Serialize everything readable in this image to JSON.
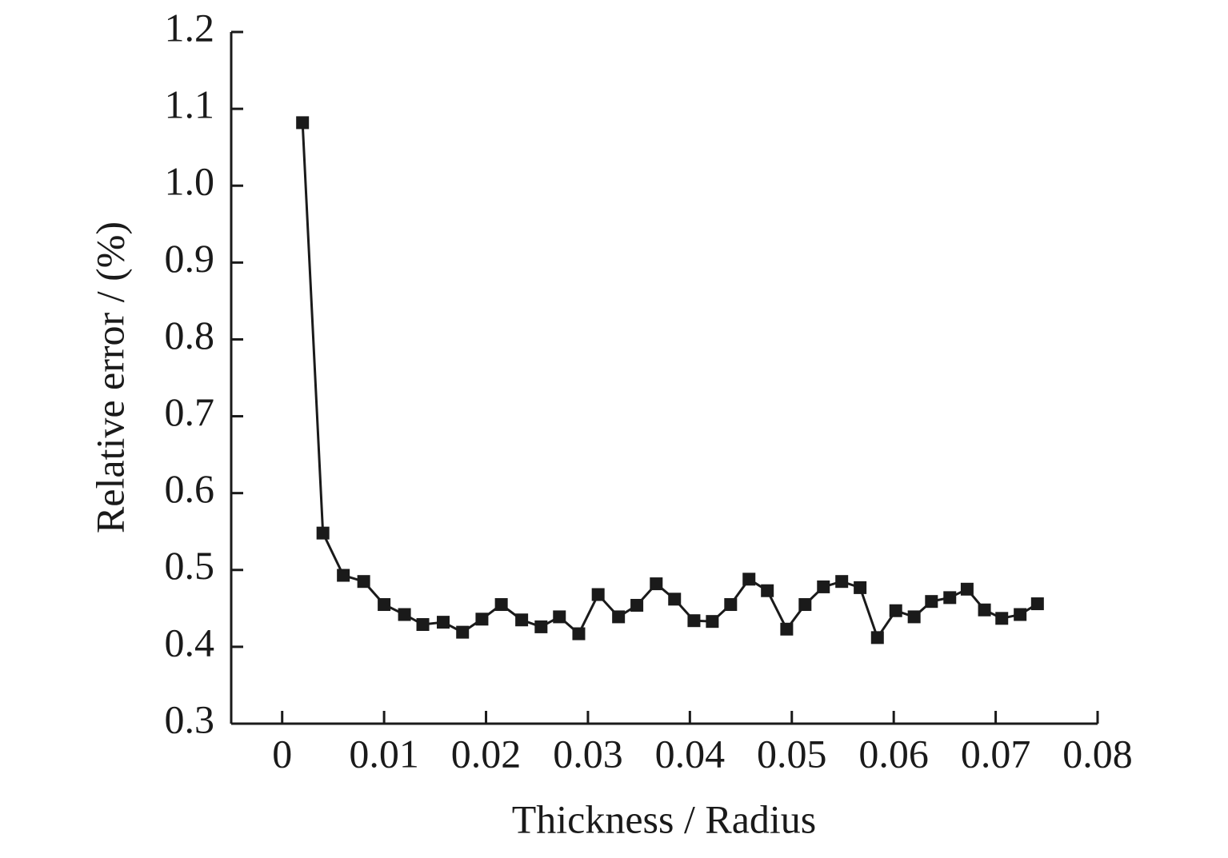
{
  "chart_data": {
    "type": "line",
    "x_label": "Thickness / Radius",
    "y_label": "Relative error / (%)",
    "xlim": [
      -0.005,
      0.08
    ],
    "xticks": [
      0,
      0.01,
      0.02,
      0.03,
      0.04,
      0.05,
      0.06,
      0.07,
      0.08
    ],
    "ylim": [
      0.3,
      1.2
    ],
    "yticks": [
      0.3,
      0.4,
      0.5,
      0.6,
      0.7,
      0.8,
      0.9,
      {
        "value": 1,
        "label": "1.0"
      },
      1.1,
      1.2
    ],
    "x": [
      0.002,
      0.004,
      0.006,
      0.008,
      0.01,
      0.012,
      0.0138,
      0.0158,
      0.0177,
      0.0196,
      0.0215,
      0.0235,
      0.0254,
      0.0272,
      0.0291,
      0.031,
      0.033,
      0.0348,
      0.0367,
      0.0385,
      0.0404,
      0.0422,
      0.044,
      0.0458,
      0.0476,
      0.0495,
      0.0513,
      0.0531,
      0.0549,
      0.0567,
      0.0584,
      0.0602,
      0.062,
      0.0637,
      0.0655,
      0.0672,
      0.0689,
      0.0706,
      0.0724,
      0.0741
    ],
    "series": [
      {
        "color": "#1a1a1a",
        "marker": "square",
        "values": [
          1.082,
          0.548,
          0.493,
          0.485,
          0.455,
          0.442,
          0.429,
          0.432,
          0.419,
          0.436,
          0.455,
          0.435,
          0.426,
          0.439,
          0.417,
          0.468,
          0.439,
          0.454,
          0.482,
          0.462,
          0.434,
          0.433,
          0.455,
          0.488,
          0.473,
          0.423,
          0.455,
          0.478,
          0.485,
          0.477,
          0.412,
          0.447,
          0.439,
          0.459,
          0.464,
          0.475,
          0.448,
          0.437,
          0.442,
          0.456
        ]
      }
    ]
  }
}
